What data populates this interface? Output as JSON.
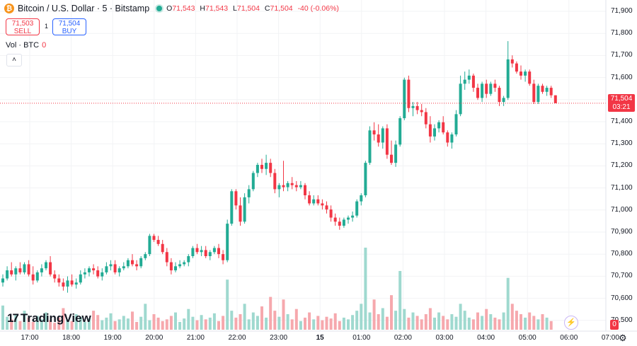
{
  "header": {
    "coin_icon": "bitcoin-icon",
    "coin_glyph": "₿",
    "title": "Bitcoin / U.S. Dollar · 5 · Bitstamp",
    "ohlc": {
      "o_label": "O",
      "o": "71,543",
      "h_label": "H",
      "h": "71,543",
      "l_label": "L",
      "l": "71,504",
      "c_label": "C",
      "c": "71,504",
      "change": "-40 (-0.06%)"
    }
  },
  "trade": {
    "sell_price": "71,503",
    "sell_label": "SELL",
    "spread": "1",
    "buy_price": "71,504",
    "buy_label": "BUY"
  },
  "volume_legend": {
    "label": "Vol · BTC",
    "value": "0"
  },
  "collapse_glyph": "˄",
  "branding": {
    "logo_mark": "17",
    "logo_text": "TradingView"
  },
  "price_axis": {
    "ticks": [
      "71,900",
      "71,800",
      "71,700",
      "71,600",
      "71,500",
      "71,400",
      "71,300",
      "71,200",
      "71,100",
      "71,000",
      "70,900",
      "70,800",
      "70,700",
      "70,600",
      "70,500"
    ],
    "last_price": "71,504",
    "countdown": "03:21",
    "volume_tag": "0"
  },
  "time_axis": {
    "ticks": [
      "17:00",
      "18:00",
      "19:00",
      "20:00",
      "21:00",
      "22:00",
      "23:00",
      "15",
      "01:00",
      "02:00",
      "03:00",
      "04:00",
      "05:00",
      "06:00",
      "07:00"
    ]
  },
  "colors": {
    "up": "#22ab94",
    "down": "#f23645",
    "vol_up": "#9fd9cf",
    "vol_down": "#f6a8ad"
  },
  "chart_data": {
    "type": "candlestick",
    "interval": "5 minutes",
    "y_range": [
      70450,
      71950
    ],
    "last_price": 71504,
    "candles": [
      {
        "o": 70620,
        "h": 70660,
        "l": 70600,
        "c": 70640
      },
      {
        "o": 70640,
        "h": 70700,
        "l": 70630,
        "c": 70680
      },
      {
        "o": 70680,
        "h": 70720,
        "l": 70650,
        "c": 70660
      },
      {
        "o": 70660,
        "h": 70700,
        "l": 70630,
        "c": 70690
      },
      {
        "o": 70690,
        "h": 70720,
        "l": 70660,
        "c": 70670
      },
      {
        "o": 70670,
        "h": 70720,
        "l": 70660,
        "c": 70710
      },
      {
        "o": 70710,
        "h": 70730,
        "l": 70650,
        "c": 70660
      },
      {
        "o": 70660,
        "h": 70700,
        "l": 70610,
        "c": 70630
      },
      {
        "o": 70630,
        "h": 70680,
        "l": 70620,
        "c": 70670
      },
      {
        "o": 70670,
        "h": 70710,
        "l": 70650,
        "c": 70690
      },
      {
        "o": 70690,
        "h": 70730,
        "l": 70680,
        "c": 70720
      },
      {
        "o": 70720,
        "h": 70750,
        "l": 70650,
        "c": 70660
      },
      {
        "o": 70660,
        "h": 70680,
        "l": 70620,
        "c": 70640
      },
      {
        "o": 70640,
        "h": 70660,
        "l": 70600,
        "c": 70620
      },
      {
        "o": 70620,
        "h": 70640,
        "l": 70580,
        "c": 70600
      },
      {
        "o": 70600,
        "h": 70650,
        "l": 70570,
        "c": 70630
      },
      {
        "o": 70630,
        "h": 70660,
        "l": 70600,
        "c": 70610
      },
      {
        "o": 70610,
        "h": 70640,
        "l": 70590,
        "c": 70620
      },
      {
        "o": 70620,
        "h": 70680,
        "l": 70610,
        "c": 70660
      },
      {
        "o": 70660,
        "h": 70690,
        "l": 70640,
        "c": 70670
      },
      {
        "o": 70670,
        "h": 70700,
        "l": 70650,
        "c": 70690
      },
      {
        "o": 70690,
        "h": 70710,
        "l": 70660,
        "c": 70680
      },
      {
        "o": 70680,
        "h": 70700,
        "l": 70640,
        "c": 70650
      },
      {
        "o": 70650,
        "h": 70690,
        "l": 70630,
        "c": 70670
      },
      {
        "o": 70670,
        "h": 70720,
        "l": 70660,
        "c": 70700
      },
      {
        "o": 70700,
        "h": 70730,
        "l": 70680,
        "c": 70710
      },
      {
        "o": 70710,
        "h": 70730,
        "l": 70660,
        "c": 70670
      },
      {
        "o": 70670,
        "h": 70700,
        "l": 70650,
        "c": 70690
      },
      {
        "o": 70690,
        "h": 70720,
        "l": 70680,
        "c": 70700
      },
      {
        "o": 70700,
        "h": 70740,
        "l": 70690,
        "c": 70730
      },
      {
        "o": 70730,
        "h": 70760,
        "l": 70700,
        "c": 70710
      },
      {
        "o": 70710,
        "h": 70730,
        "l": 70680,
        "c": 70700
      },
      {
        "o": 70700,
        "h": 70750,
        "l": 70690,
        "c": 70740
      },
      {
        "o": 70740,
        "h": 70770,
        "l": 70730,
        "c": 70760
      },
      {
        "o": 70760,
        "h": 70860,
        "l": 70750,
        "c": 70850
      },
      {
        "o": 70850,
        "h": 70860,
        "l": 70820,
        "c": 70830
      },
      {
        "o": 70830,
        "h": 70850,
        "l": 70800,
        "c": 70810
      },
      {
        "o": 70810,
        "h": 70830,
        "l": 70760,
        "c": 70770
      },
      {
        "o": 70770,
        "h": 70790,
        "l": 70700,
        "c": 70720
      },
      {
        "o": 70720,
        "h": 70740,
        "l": 70660,
        "c": 70680
      },
      {
        "o": 70680,
        "h": 70720,
        "l": 70670,
        "c": 70700
      },
      {
        "o": 70700,
        "h": 70730,
        "l": 70690,
        "c": 70710
      },
      {
        "o": 70710,
        "h": 70730,
        "l": 70700,
        "c": 70720
      },
      {
        "o": 70720,
        "h": 70760,
        "l": 70700,
        "c": 70750
      },
      {
        "o": 70750,
        "h": 70800,
        "l": 70740,
        "c": 70790
      },
      {
        "o": 70790,
        "h": 70810,
        "l": 70760,
        "c": 70770
      },
      {
        "o": 70770,
        "h": 70800,
        "l": 70750,
        "c": 70780
      },
      {
        "o": 70780,
        "h": 70800,
        "l": 70740,
        "c": 70750
      },
      {
        "o": 70750,
        "h": 70780,
        "l": 70730,
        "c": 70770
      },
      {
        "o": 70770,
        "h": 70800,
        "l": 70760,
        "c": 70790
      },
      {
        "o": 70790,
        "h": 70810,
        "l": 70740,
        "c": 70760
      },
      {
        "o": 70760,
        "h": 70780,
        "l": 70710,
        "c": 70730
      },
      {
        "o": 70730,
        "h": 70930,
        "l": 70720,
        "c": 70910
      },
      {
        "o": 70910,
        "h": 71080,
        "l": 70900,
        "c": 71070
      },
      {
        "o": 71070,
        "h": 71080,
        "l": 70980,
        "c": 71000
      },
      {
        "o": 71000,
        "h": 71040,
        "l": 70900,
        "c": 70920
      },
      {
        "o": 70920,
        "h": 71060,
        "l": 70910,
        "c": 71040
      },
      {
        "o": 71040,
        "h": 71100,
        "l": 71010,
        "c": 71080
      },
      {
        "o": 71080,
        "h": 71170,
        "l": 71070,
        "c": 71160
      },
      {
        "o": 71160,
        "h": 71210,
        "l": 71140,
        "c": 71200
      },
      {
        "o": 71200,
        "h": 71230,
        "l": 71160,
        "c": 71180
      },
      {
        "o": 71180,
        "h": 71250,
        "l": 71150,
        "c": 71210
      },
      {
        "o": 71210,
        "h": 71230,
        "l": 71140,
        "c": 71160
      },
      {
        "o": 71160,
        "h": 71180,
        "l": 71060,
        "c": 71080
      },
      {
        "o": 71080,
        "h": 71110,
        "l": 71040,
        "c": 71100
      },
      {
        "o": 71100,
        "h": 71220,
        "l": 71070,
        "c": 71090
      },
      {
        "o": 71090,
        "h": 71120,
        "l": 71070,
        "c": 71110
      },
      {
        "o": 71110,
        "h": 71140,
        "l": 71080,
        "c": 71100
      },
      {
        "o": 71100,
        "h": 71120,
        "l": 71070,
        "c": 71090
      },
      {
        "o": 71090,
        "h": 71120,
        "l": 71080,
        "c": 71100
      },
      {
        "o": 71100,
        "h": 71110,
        "l": 71030,
        "c": 71050
      },
      {
        "o": 71050,
        "h": 71070,
        "l": 71000,
        "c": 71010
      },
      {
        "o": 71010,
        "h": 71050,
        "l": 71000,
        "c": 71030
      },
      {
        "o": 71030,
        "h": 71050,
        "l": 71000,
        "c": 71010
      },
      {
        "o": 71010,
        "h": 71030,
        "l": 70980,
        "c": 71000
      },
      {
        "o": 71000,
        "h": 71020,
        "l": 70960,
        "c": 70980
      },
      {
        "o": 70980,
        "h": 71000,
        "l": 70920,
        "c": 70940
      },
      {
        "o": 70940,
        "h": 70960,
        "l": 70900,
        "c": 70920
      },
      {
        "o": 70920,
        "h": 70940,
        "l": 70880,
        "c": 70900
      },
      {
        "o": 70900,
        "h": 70940,
        "l": 70890,
        "c": 70930
      },
      {
        "o": 70930,
        "h": 70950,
        "l": 70910,
        "c": 70940
      },
      {
        "o": 70940,
        "h": 70970,
        "l": 70920,
        "c": 70950
      },
      {
        "o": 70950,
        "h": 71030,
        "l": 70940,
        "c": 71020
      },
      {
        "o": 71020,
        "h": 71060,
        "l": 71000,
        "c": 71050
      },
      {
        "o": 71050,
        "h": 71220,
        "l": 71040,
        "c": 71210
      },
      {
        "o": 71210,
        "h": 71390,
        "l": 71200,
        "c": 71370
      },
      {
        "o": 71370,
        "h": 71410,
        "l": 71320,
        "c": 71350
      },
      {
        "o": 71350,
        "h": 71400,
        "l": 71290,
        "c": 71310
      },
      {
        "o": 71310,
        "h": 71390,
        "l": 71280,
        "c": 71380
      },
      {
        "o": 71380,
        "h": 71400,
        "l": 71230,
        "c": 71250
      },
      {
        "o": 71250,
        "h": 71320,
        "l": 71200,
        "c": 71210
      },
      {
        "o": 71210,
        "h": 71320,
        "l": 71190,
        "c": 71300
      },
      {
        "o": 71300,
        "h": 71440,
        "l": 71290,
        "c": 71430
      },
      {
        "o": 71430,
        "h": 71630,
        "l": 71420,
        "c": 71620
      },
      {
        "o": 71620,
        "h": 71640,
        "l": 71460,
        "c": 71480
      },
      {
        "o": 71480,
        "h": 71510,
        "l": 71440,
        "c": 71490
      },
      {
        "o": 71490,
        "h": 71510,
        "l": 71450,
        "c": 71470
      },
      {
        "o": 71470,
        "h": 71500,
        "l": 71440,
        "c": 71460
      },
      {
        "o": 71460,
        "h": 71480,
        "l": 71380,
        "c": 71400
      },
      {
        "o": 71400,
        "h": 71440,
        "l": 71310,
        "c": 71340
      },
      {
        "o": 71340,
        "h": 71400,
        "l": 71320,
        "c": 71380
      },
      {
        "o": 71380,
        "h": 71420,
        "l": 71360,
        "c": 71410
      },
      {
        "o": 71410,
        "h": 71440,
        "l": 71350,
        "c": 71360
      },
      {
        "o": 71360,
        "h": 71370,
        "l": 71290,
        "c": 71310
      },
      {
        "o": 71310,
        "h": 71360,
        "l": 71280,
        "c": 71350
      },
      {
        "o": 71350,
        "h": 71470,
        "l": 71340,
        "c": 71450
      },
      {
        "o": 71450,
        "h": 71640,
        "l": 71440,
        "c": 71600
      },
      {
        "o": 71600,
        "h": 71660,
        "l": 71570,
        "c": 71620
      },
      {
        "o": 71620,
        "h": 71670,
        "l": 71600,
        "c": 71640
      },
      {
        "o": 71640,
        "h": 71650,
        "l": 71560,
        "c": 71580
      },
      {
        "o": 71580,
        "h": 71600,
        "l": 71520,
        "c": 71530
      },
      {
        "o": 71530,
        "h": 71610,
        "l": 71510,
        "c": 71600
      },
      {
        "o": 71600,
        "h": 71620,
        "l": 71530,
        "c": 71550
      },
      {
        "o": 71550,
        "h": 71610,
        "l": 71540,
        "c": 71600
      },
      {
        "o": 71600,
        "h": 71620,
        "l": 71560,
        "c": 71580
      },
      {
        "o": 71580,
        "h": 71590,
        "l": 71490,
        "c": 71510
      },
      {
        "o": 71510,
        "h": 71540,
        "l": 71490,
        "c": 71530
      },
      {
        "o": 71530,
        "h": 71810,
        "l": 71520,
        "c": 71720
      },
      {
        "o": 71720,
        "h": 71740,
        "l": 71680,
        "c": 71700
      },
      {
        "o": 71700,
        "h": 71710,
        "l": 71650,
        "c": 71660
      },
      {
        "o": 71660,
        "h": 71690,
        "l": 71620,
        "c": 71640
      },
      {
        "o": 71640,
        "h": 71670,
        "l": 71610,
        "c": 71660
      },
      {
        "o": 71660,
        "h": 71670,
        "l": 71590,
        "c": 71600
      },
      {
        "o": 71600,
        "h": 71620,
        "l": 71500,
        "c": 71510
      },
      {
        "o": 71510,
        "h": 71600,
        "l": 71500,
        "c": 71590
      },
      {
        "o": 71590,
        "h": 71600,
        "l": 71550,
        "c": 71560
      },
      {
        "o": 71560,
        "h": 71590,
        "l": 71540,
        "c": 71580
      },
      {
        "o": 71580,
        "h": 71590,
        "l": 71530,
        "c": 71543
      },
      {
        "o": 71543,
        "h": 71543,
        "l": 71504,
        "c": 71504
      }
    ],
    "volumes": [
      28,
      15,
      12,
      18,
      10,
      22,
      14,
      9,
      16,
      12,
      20,
      11,
      8,
      14,
      25,
      12,
      10,
      18,
      15,
      9,
      13,
      22,
      17,
      11,
      14,
      19,
      10,
      12,
      16,
      13,
      21,
      9,
      15,
      30,
      11,
      18,
      14,
      10,
      12,
      16,
      20,
      9,
      13,
      24,
      15,
      11,
      17,
      12,
      14,
      19,
      10,
      16,
      58,
      22,
      14,
      18,
      30,
      12,
      20,
      16,
      27,
      14,
      38,
      22,
      15,
      35,
      18,
      12,
      24,
      10,
      14,
      20,
      12,
      16,
      11,
      15,
      13,
      19,
      10,
      14,
      12,
      17,
      22,
      30,
      95,
      20,
      35,
      18,
      25,
      15,
      40,
      22,
      68,
      24,
      14,
      20,
      16,
      12,
      18,
      25,
      14,
      20,
      16,
      12,
      18,
      15,
      30,
      22,
      14,
      12,
      20,
      16,
      24,
      18,
      14,
      12,
      20,
      60,
      30,
      22,
      18,
      14,
      20,
      16,
      12,
      18,
      14,
      10
    ],
    "volume_max": 95
  }
}
